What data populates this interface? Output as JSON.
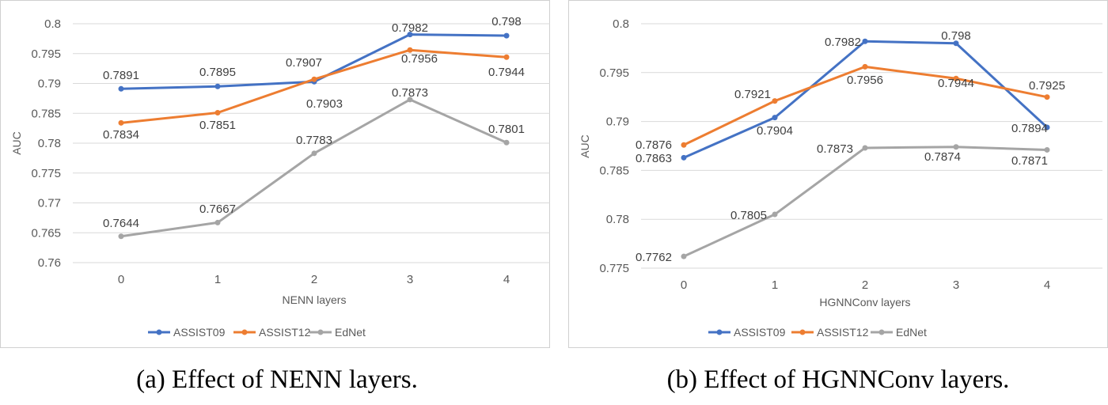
{
  "chart_data": [
    {
      "type": "line",
      "caption": "(a) Effect of NENN layers.",
      "xlabel": "NENN layers",
      "ylabel": "AUC",
      "categories": [
        "0",
        "1",
        "2",
        "3",
        "4"
      ],
      "yticks": [
        "0.76",
        "0.765",
        "0.77",
        "0.775",
        "0.78",
        "0.785",
        "0.79",
        "0.795",
        "0.8"
      ],
      "ylim": [
        0.76,
        0.8
      ],
      "grid": true,
      "legend": "bottom",
      "series": [
        {
          "name": "ASSIST09",
          "color": "#4472C4",
          "values": [
            0.7891,
            0.7895,
            0.7903,
            0.7982,
            0.798
          ],
          "labels": [
            "0.7891",
            "0.7895",
            "0.7903",
            "0.7982",
            "0.798"
          ]
        },
        {
          "name": "ASSIST12",
          "color": "#ED7D31",
          "values": [
            0.7834,
            0.7851,
            0.7907,
            0.7956,
            0.7944
          ],
          "labels": [
            "0.7834",
            "0.7851",
            "0.7907",
            "0.7956",
            "0.7944"
          ]
        },
        {
          "name": "EdNet",
          "color": "#A5A5A5",
          "values": [
            0.7644,
            0.7667,
            0.7783,
            0.7873,
            0.7801
          ],
          "labels": [
            "0.7644",
            "0.7667",
            "0.7783",
            "0.7873",
            "0.7801"
          ]
        }
      ]
    },
    {
      "type": "line",
      "caption": "(b) Effect of HGNNConv layers.",
      "xlabel": "HGNNConv layers",
      "ylabel": "AUC",
      "categories": [
        "0",
        "1",
        "2",
        "3",
        "4"
      ],
      "yticks": [
        "0.775",
        "0.78",
        "0.785",
        "0.79",
        "0.795",
        "0.8"
      ],
      "ylim": [
        0.775,
        0.8
      ],
      "grid": true,
      "legend": "bottom",
      "series": [
        {
          "name": "ASSIST09",
          "color": "#4472C4",
          "values": [
            0.7863,
            0.7904,
            0.7982,
            0.798,
            0.7894
          ],
          "labels": [
            "0.7863",
            "0.7904",
            "0.7982",
            "0.798",
            "0.7894"
          ]
        },
        {
          "name": "ASSIST12",
          "color": "#ED7D31",
          "values": [
            0.7876,
            0.7921,
            0.7956,
            0.7944,
            0.7925
          ],
          "labels": [
            "0.7876",
            "0.7921",
            "0.7956",
            "0.7944",
            "0.7925"
          ]
        },
        {
          "name": "EdNet",
          "color": "#A5A5A5",
          "values": [
            0.7762,
            0.7805,
            0.7873,
            0.7874,
            0.7871
          ],
          "labels": [
            "0.7762",
            "0.7805",
            "0.7873",
            "0.7874",
            "0.7871"
          ]
        }
      ]
    }
  ]
}
